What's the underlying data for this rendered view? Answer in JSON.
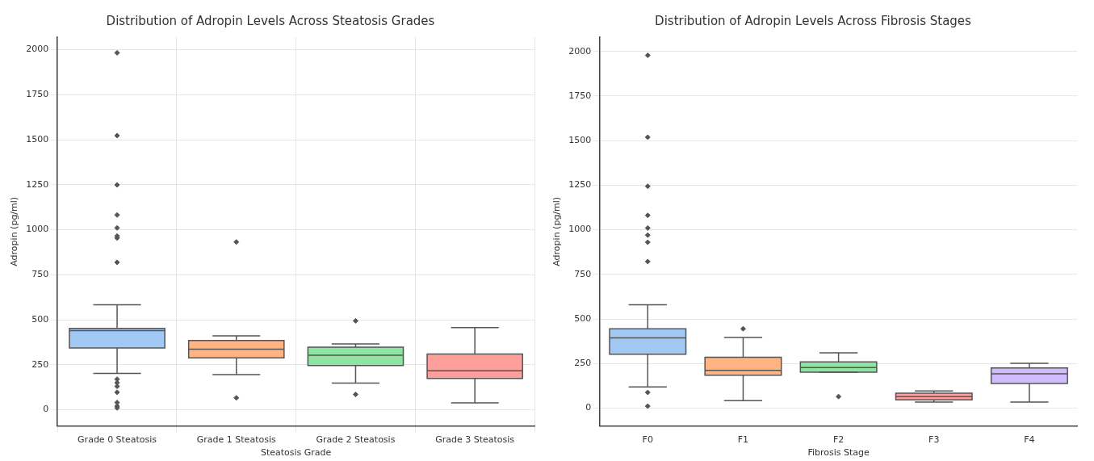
{
  "chart_data": [
    {
      "type": "box",
      "title": "Distribution of Adropin Levels Across Steatosis Grades",
      "xlabel": "Steatosis Grade",
      "ylabel": "Adropin (pg/ml)",
      "categories": [
        "Grade 0 Steatosis",
        "Grade 1 Steatosis",
        "Grade 2 Steatosis",
        "Grade 3 Steatosis"
      ],
      "colors": [
        "#a1c9f4",
        "#ffb482",
        "#8de5a1",
        "#ff9f9b"
      ],
      "boxes": [
        {
          "low": 202,
          "q1": 343,
          "median": 440,
          "q3": 452,
          "high": 583,
          "outliers": [
            1983,
            1523,
            1249,
            1082,
            1010,
            965,
            954,
            819,
            170,
            150,
            130,
            97,
            40,
            20,
            10
          ]
        },
        {
          "low": 195,
          "q1": 288,
          "median": 336,
          "q3": 385,
          "high": 410,
          "outliers": [
            932,
            66
          ]
        },
        {
          "low": 148,
          "q1": 246,
          "median": 303,
          "q3": 348,
          "high": 366,
          "outliers": [
            494,
            85
          ]
        },
        {
          "low": 38,
          "q1": 174,
          "median": 216,
          "q3": 310,
          "high": 457
        }
      ],
      "ylim": [
        -90,
        2070
      ],
      "yticks": [
        0,
        250,
        500,
        750,
        1000,
        1250,
        1500,
        1750,
        2000
      ],
      "grid": true
    },
    {
      "type": "box",
      "title": "Distribution of Adropin Levels Across Fibrosis Stages",
      "xlabel": "Fibrosis Stage",
      "ylabel": "Adropin (pg/ml)",
      "categories": [
        "F0",
        "F1",
        "F2",
        "F3",
        "F4"
      ],
      "colors": [
        "#a1c9f4",
        "#ffb482",
        "#8de5a1",
        "#ff9f9b",
        "#d0bbff"
      ],
      "boxes": [
        {
          "low": 119,
          "q1": 302,
          "median": 394,
          "q3": 445,
          "high": 580,
          "outliers": [
            1978,
            1519,
            1244,
            1081,
            1010,
            970,
            930,
            822,
            88,
            11
          ]
        },
        {
          "low": 42,
          "q1": 185,
          "median": 212,
          "q3": 285,
          "high": 396,
          "outliers": [
            445
          ]
        },
        {
          "low": 202,
          "q1": 202,
          "median": 228,
          "q3": 259,
          "high": 310,
          "outliers": [
            65
          ]
        },
        {
          "low": 34,
          "q1": 47,
          "median": 65,
          "q3": 84,
          "high": 96
        },
        {
          "low": 34,
          "q1": 138,
          "median": 192,
          "q3": 225,
          "high": 251
        }
      ],
      "ylim": [
        -100,
        2080
      ],
      "yticks": [
        0,
        250,
        500,
        750,
        1000,
        1250,
        1500,
        1750,
        2000
      ],
      "grid": "y"
    }
  ]
}
